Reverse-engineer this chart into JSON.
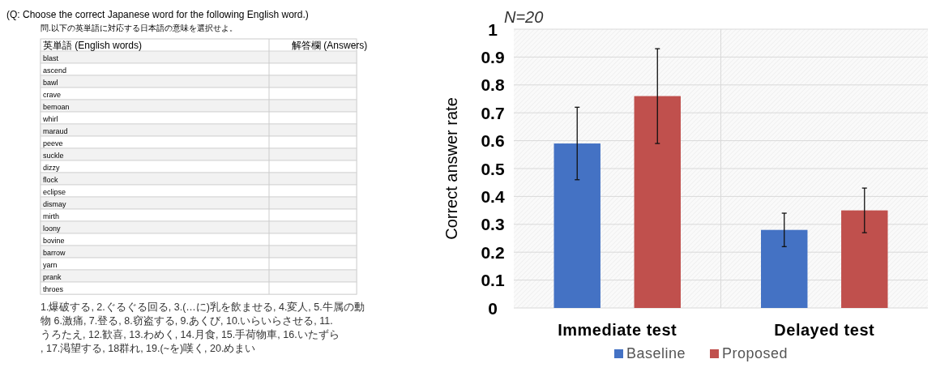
{
  "chart_data": [
    {
      "type": "other",
      "title": "(Q: Choose the correct Japanese word for the following English word.)",
      "subtitle": "問.以下の英単語に対応する日本語の意味を選択せよ。",
      "categories": [
        "blast",
        "ascend",
        "bawl",
        "crave",
        "bemoan",
        "whirl",
        "maraud",
        "peeve",
        "suckle",
        "dizzy",
        "flock",
        "eclipse",
        "dismay",
        "mirth",
        "loony",
        "bovine",
        "barrow",
        "yarn",
        "prank",
        "throes"
      ],
      "annotations": [
        "英単語 (English words)",
        "解答欄 (Answers)",
        "1.爆破する, 2.ぐるぐる回る, 3.(…に)乳を飲ませる, 4.変人, 5.牛属の動物 6.激痛, 7.登る, 8.窃盗する, 9.あくび, 10.いらいらさせる, 11.うろたえ, 12.歓喜, 13.わめく, 14.月食, 15.手荷物車, 16.いたずら, 17.渇望する, 18群れ, 19.(~を)嘆く, 20.めまい"
      ]
    },
    {
      "type": "bar",
      "title": "N=20",
      "ylabel": "Correct answer rate",
      "categories": [
        "Immediate test",
        "Delayed test"
      ],
      "series": [
        {
          "name": "Baseline",
          "color": "#4472c4",
          "values": [
            0.59,
            0.28
          ],
          "errors": [
            [
              0.46,
              0.72
            ],
            [
              0.22,
              0.34
            ]
          ]
        },
        {
          "name": "Proposed",
          "color": "#c0504d",
          "values": [
            0.76,
            0.35
          ],
          "errors": [
            [
              0.59,
              0.93
            ],
            [
              0.27,
              0.43
            ]
          ]
        }
      ],
      "ylim": [
        0,
        1
      ],
      "yticks": [
        0,
        0.1,
        0.2,
        0.3,
        0.4,
        0.5,
        0.6,
        0.7,
        0.8,
        0.9,
        1
      ],
      "grid": true,
      "legend": "bottom"
    }
  ]
}
